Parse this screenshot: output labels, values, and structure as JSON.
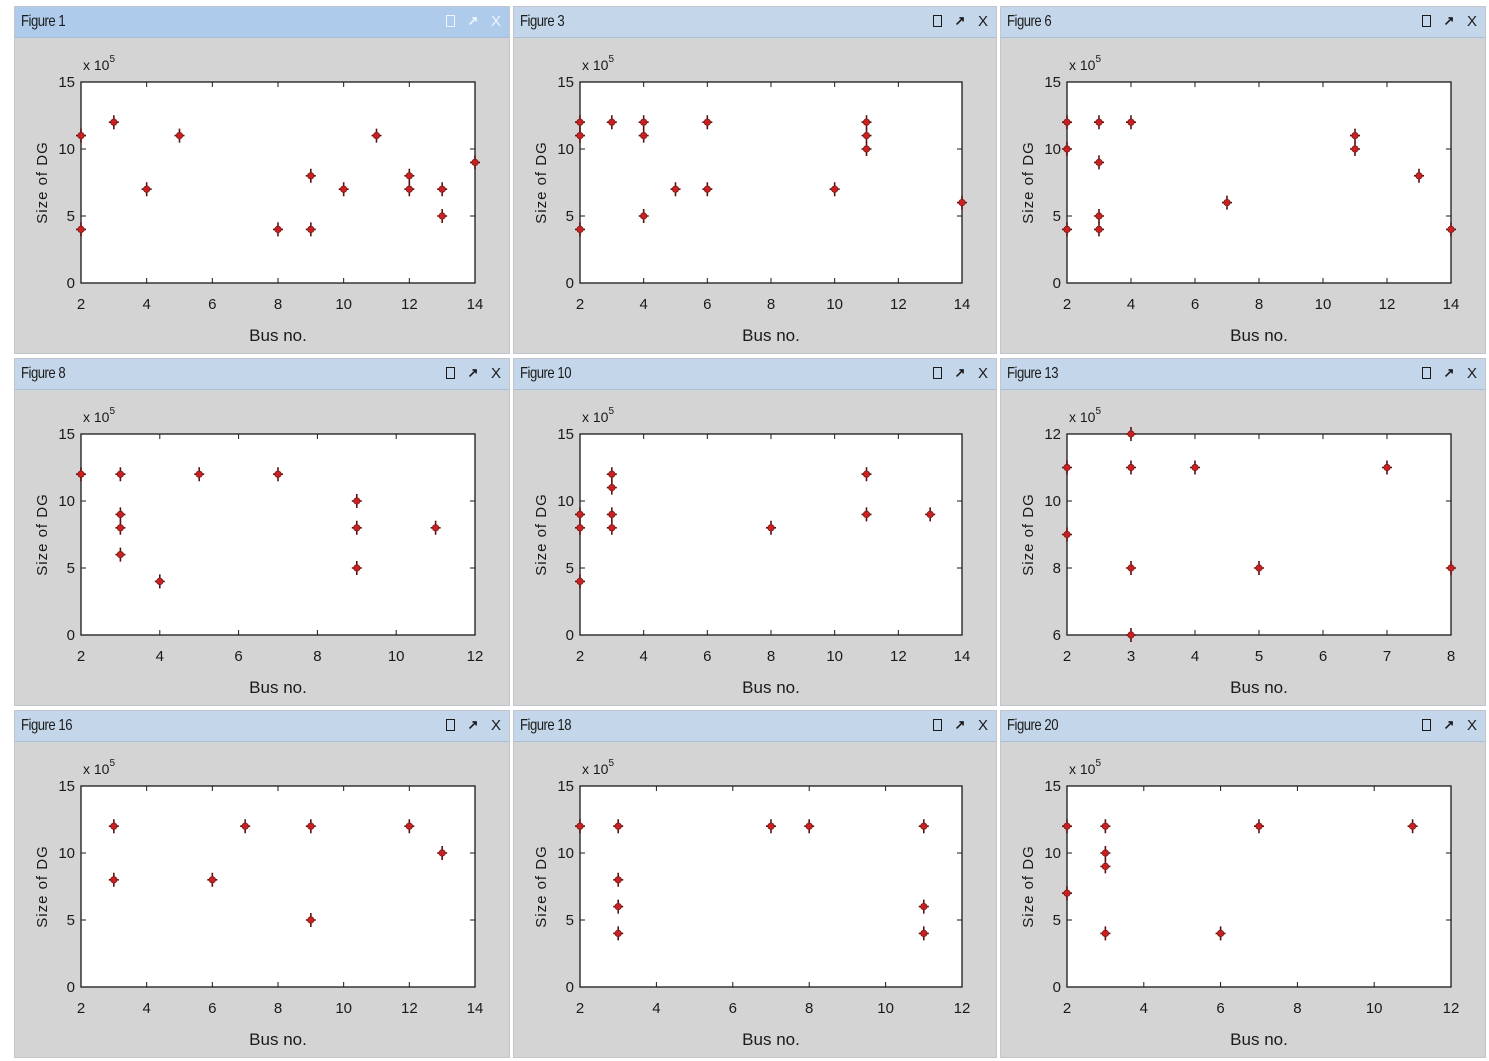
{
  "window_controls": {
    "dock_icon": "dock-icon",
    "undock_icon": "undock-arrow-icon",
    "close_label": "X"
  },
  "figures": [
    {
      "title": "Figure 1",
      "active": true,
      "chart_data": {
        "type": "scatter",
        "xlabel": "Bus no.",
        "ylabel": "Size of DG",
        "y_multiplier": "x 10",
        "y_multiplier_exp": "5",
        "xlim": [
          2,
          14
        ],
        "ylim": [
          0,
          15
        ],
        "xticks": [
          "2",
          "4",
          "6",
          "8",
          "10",
          "12",
          "14"
        ],
        "yticks": [
          "0",
          "5",
          "10",
          "15"
        ],
        "marker_color": "#cc2020",
        "points": [
          [
            2,
            11
          ],
          [
            2,
            4
          ],
          [
            3,
            12
          ],
          [
            4,
            7
          ],
          [
            5,
            11
          ],
          [
            8,
            4
          ],
          [
            9,
            8
          ],
          [
            9,
            4
          ],
          [
            10,
            7
          ],
          [
            11,
            11
          ],
          [
            12,
            8
          ],
          [
            12,
            7
          ],
          [
            13,
            7
          ],
          [
            13,
            5
          ],
          [
            14,
            9
          ]
        ]
      }
    },
    {
      "title": "Figure 3",
      "active": false,
      "chart_data": {
        "type": "scatter",
        "xlabel": "Bus no.",
        "ylabel": "Size of DG",
        "y_multiplier": "x 10",
        "y_multiplier_exp": "5",
        "xlim": [
          2,
          14
        ],
        "ylim": [
          0,
          15
        ],
        "xticks": [
          "2",
          "4",
          "6",
          "8",
          "10",
          "12",
          "14"
        ],
        "yticks": [
          "0",
          "5",
          "10",
          "15"
        ],
        "marker_color": "#cc2020",
        "points": [
          [
            2,
            12
          ],
          [
            2,
            11
          ],
          [
            2,
            4
          ],
          [
            3,
            12
          ],
          [
            4,
            12
          ],
          [
            4,
            11
          ],
          [
            4,
            5
          ],
          [
            5,
            7
          ],
          [
            6,
            12
          ],
          [
            6,
            7
          ],
          [
            10,
            7
          ],
          [
            11,
            12
          ],
          [
            11,
            11
          ],
          [
            11,
            10
          ],
          [
            14,
            6
          ]
        ]
      }
    },
    {
      "title": "Figure 6",
      "active": false,
      "chart_data": {
        "type": "scatter",
        "xlabel": "Bus no.",
        "ylabel": "Size of DG",
        "y_multiplier": "x 10",
        "y_multiplier_exp": "5",
        "xlim": [
          2,
          14
        ],
        "ylim": [
          0,
          15
        ],
        "xticks": [
          "2",
          "4",
          "6",
          "8",
          "10",
          "12",
          "14"
        ],
        "yticks": [
          "0",
          "5",
          "10",
          "15"
        ],
        "marker_color": "#cc2020",
        "points": [
          [
            2,
            12
          ],
          [
            2,
            10
          ],
          [
            2,
            4
          ],
          [
            3,
            12
          ],
          [
            3,
            9
          ],
          [
            3,
            5
          ],
          [
            3,
            4
          ],
          [
            4,
            12
          ],
          [
            7,
            6
          ],
          [
            11,
            11
          ],
          [
            11,
            10
          ],
          [
            13,
            8
          ],
          [
            14,
            4
          ]
        ]
      }
    },
    {
      "title": "Figure 8",
      "active": false,
      "chart_data": {
        "type": "scatter",
        "xlabel": "Bus no.",
        "ylabel": "Size of DG",
        "y_multiplier": "x 10",
        "y_multiplier_exp": "5",
        "xlim": [
          2,
          12
        ],
        "ylim": [
          0,
          15
        ],
        "xticks": [
          "2",
          "4",
          "6",
          "8",
          "10",
          "12"
        ],
        "yticks": [
          "0",
          "5",
          "10",
          "15"
        ],
        "marker_color": "#cc2020",
        "points": [
          [
            2,
            12
          ],
          [
            3,
            12
          ],
          [
            3,
            9
          ],
          [
            3,
            8
          ],
          [
            3,
            6
          ],
          [
            4,
            4
          ],
          [
            5,
            12
          ],
          [
            7,
            12
          ],
          [
            9,
            10
          ],
          [
            9,
            8
          ],
          [
            9,
            5
          ],
          [
            11,
            8
          ]
        ]
      }
    },
    {
      "title": "Figure 10",
      "active": false,
      "chart_data": {
        "type": "scatter",
        "xlabel": "Bus no.",
        "ylabel": "Size of DG",
        "y_multiplier": "x 10",
        "y_multiplier_exp": "5",
        "xlim": [
          2,
          14
        ],
        "ylim": [
          0,
          15
        ],
        "xticks": [
          "2",
          "4",
          "6",
          "8",
          "10",
          "12",
          "14"
        ],
        "yticks": [
          "0",
          "5",
          "10",
          "15"
        ],
        "marker_color": "#cc2020",
        "points": [
          [
            2,
            9
          ],
          [
            2,
            8
          ],
          [
            2,
            4
          ],
          [
            3,
            12
          ],
          [
            3,
            11
          ],
          [
            3,
            9
          ],
          [
            3,
            8
          ],
          [
            8,
            8
          ],
          [
            11,
            12
          ],
          [
            11,
            9
          ],
          [
            13,
            9
          ]
        ]
      }
    },
    {
      "title": "Figure 13",
      "active": false,
      "chart_data": {
        "type": "scatter",
        "xlabel": "Bus no.",
        "ylabel": "Size of DG",
        "y_multiplier": "x 10",
        "y_multiplier_exp": "5",
        "xlim": [
          2,
          8
        ],
        "ylim": [
          6,
          12
        ],
        "xticks": [
          "2",
          "3",
          "4",
          "5",
          "6",
          "7",
          "8"
        ],
        "yticks": [
          "6",
          "8",
          "10",
          "12"
        ],
        "marker_color": "#cc2020",
        "points": [
          [
            2,
            11
          ],
          [
            2,
            9
          ],
          [
            3,
            12
          ],
          [
            3,
            11
          ],
          [
            3,
            8
          ],
          [
            3,
            6
          ],
          [
            4,
            11
          ],
          [
            5,
            8
          ],
          [
            7,
            11
          ],
          [
            8,
            8
          ]
        ]
      }
    },
    {
      "title": "Figure 16",
      "active": false,
      "chart_data": {
        "type": "scatter",
        "xlabel": "Bus no.",
        "ylabel": "Size of DG",
        "y_multiplier": "x 10",
        "y_multiplier_exp": "5",
        "xlim": [
          2,
          14
        ],
        "ylim": [
          0,
          15
        ],
        "xticks": [
          "2",
          "4",
          "6",
          "8",
          "10",
          "12",
          "14"
        ],
        "yticks": [
          "0",
          "5",
          "10",
          "15"
        ],
        "marker_color": "#cc2020",
        "points": [
          [
            3,
            12
          ],
          [
            3,
            8
          ],
          [
            6,
            8
          ],
          [
            7,
            12
          ],
          [
            9,
            12
          ],
          [
            9,
            5
          ],
          [
            12,
            12
          ],
          [
            13,
            10
          ]
        ]
      }
    },
    {
      "title": "Figure 18",
      "active": false,
      "chart_data": {
        "type": "scatter",
        "xlabel": "Bus no.",
        "ylabel": "Size of DG",
        "y_multiplier": "x 10",
        "y_multiplier_exp": "5",
        "xlim": [
          2,
          12
        ],
        "ylim": [
          0,
          15
        ],
        "xticks": [
          "2",
          "4",
          "6",
          "8",
          "10",
          "12"
        ],
        "yticks": [
          "0",
          "5",
          "10",
          "15"
        ],
        "marker_color": "#cc2020",
        "points": [
          [
            2,
            12
          ],
          [
            3,
            12
          ],
          [
            3,
            8
          ],
          [
            3,
            6
          ],
          [
            3,
            4
          ],
          [
            7,
            12
          ],
          [
            8,
            12
          ],
          [
            11,
            12
          ],
          [
            11,
            6
          ],
          [
            11,
            4
          ]
        ]
      }
    },
    {
      "title": "Figure 20",
      "active": false,
      "chart_data": {
        "type": "scatter",
        "xlabel": "Bus no.",
        "ylabel": "Size of DG",
        "y_multiplier": "x 10",
        "y_multiplier_exp": "5",
        "xlim": [
          2,
          12
        ],
        "ylim": [
          0,
          15
        ],
        "xticks": [
          "2",
          "4",
          "6",
          "8",
          "10",
          "12"
        ],
        "yticks": [
          "0",
          "5",
          "10",
          "15"
        ],
        "marker_color": "#cc2020",
        "points": [
          [
            2,
            12
          ],
          [
            2,
            7
          ],
          [
            3,
            12
          ],
          [
            3,
            10
          ],
          [
            3,
            9
          ],
          [
            3,
            4
          ],
          [
            6,
            4
          ],
          [
            7,
            12
          ],
          [
            11,
            12
          ]
        ]
      }
    }
  ]
}
